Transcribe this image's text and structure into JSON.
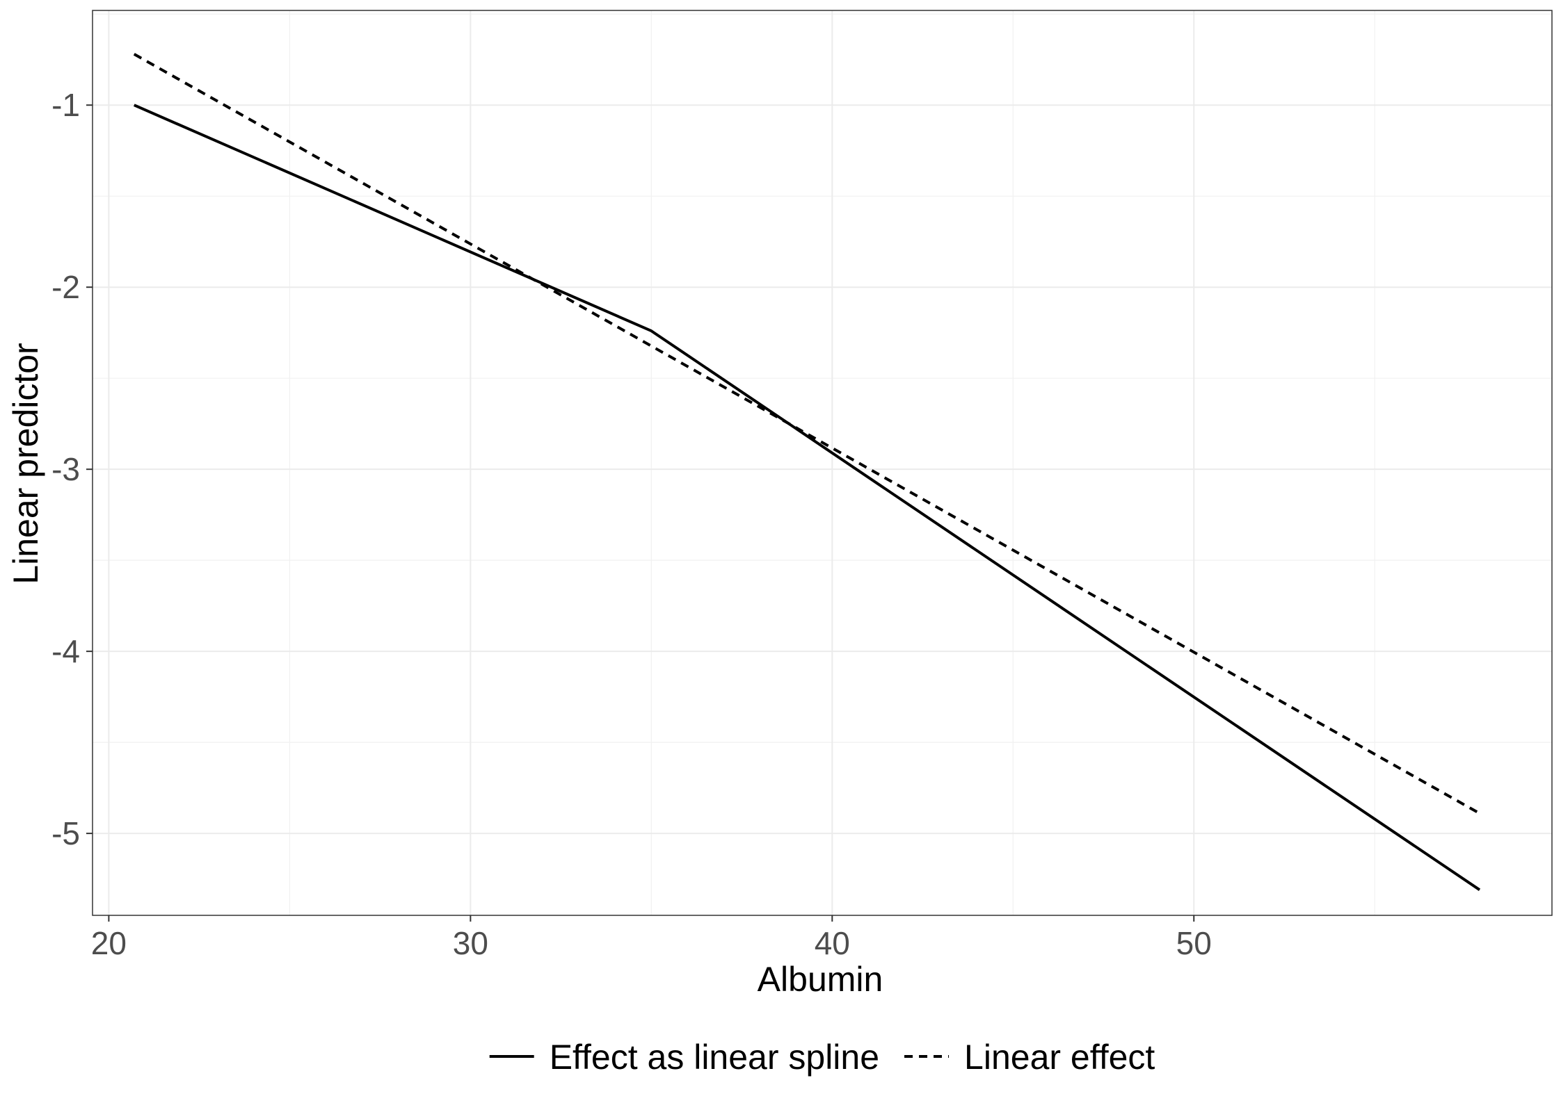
{
  "chart_data": {
    "type": "line",
    "title": "",
    "xlabel": "Albumin",
    "ylabel": "Linear predictor",
    "xlim": [
      19.55,
      59.9
    ],
    "ylim": [
      -5.45,
      -0.48
    ],
    "x_ticks": [
      20,
      30,
      40,
      50
    ],
    "x_tick_labels": [
      "20",
      "30",
      "40",
      "50"
    ],
    "y_ticks": [
      -1,
      -2,
      -3,
      -4,
      -5
    ],
    "y_tick_labels": [
      "-1",
      "-2",
      "-3",
      "-4",
      "-5"
    ],
    "grid": true,
    "legend_position": "bottom",
    "series": [
      {
        "name": "Effect as linear spline",
        "line_style": "solid",
        "color": "#000000",
        "x": [
          20.7,
          35.0,
          57.9
        ],
        "y": [
          -1.0,
          -2.24,
          -5.31
        ]
      },
      {
        "name": "Linear effect",
        "line_style": "dashed",
        "color": "#000000",
        "x": [
          20.7,
          57.9
        ],
        "y": [
          -0.72,
          -4.89
        ]
      }
    ]
  }
}
